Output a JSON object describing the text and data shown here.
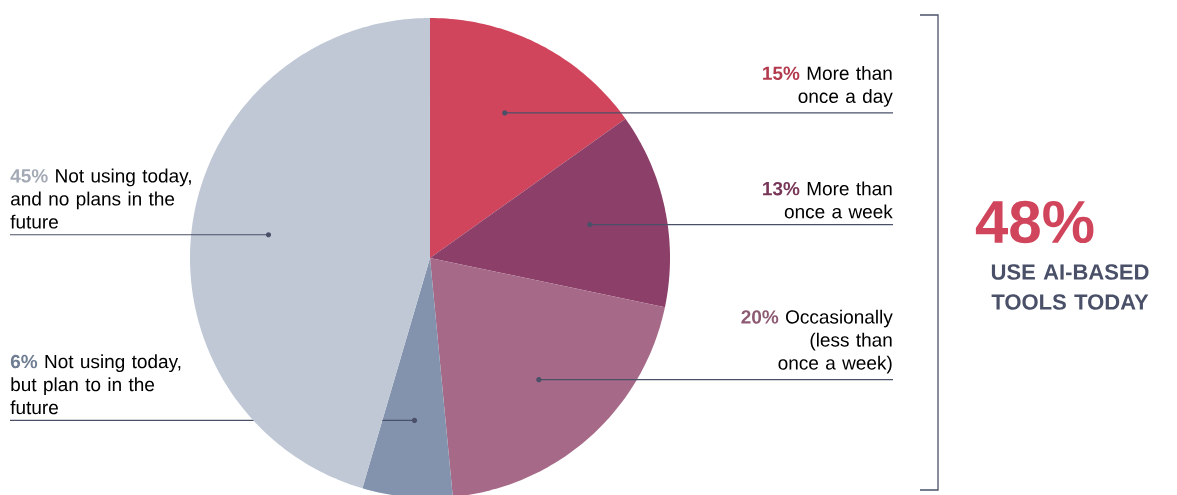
{
  "chart_data": {
    "type": "pie",
    "categories": [
      "More than once a day",
      "More than once a week",
      "Occasionally (less than once a week)",
      "Not using today, but plan to in the future",
      "Not using today, and no plans in the future"
    ],
    "values": [
      15,
      13,
      20,
      6,
      45
    ],
    "value_labels": [
      "15%",
      "13%",
      "20%",
      "6%",
      "45%"
    ],
    "colors": [
      "#d1455c",
      "#8c3f68",
      "#a66a88",
      "#8393ad",
      "#c0c8d6"
    ],
    "annotations": [
      "48%",
      "USE AI-BASED TOOLS TODAY"
    ]
  }
}
